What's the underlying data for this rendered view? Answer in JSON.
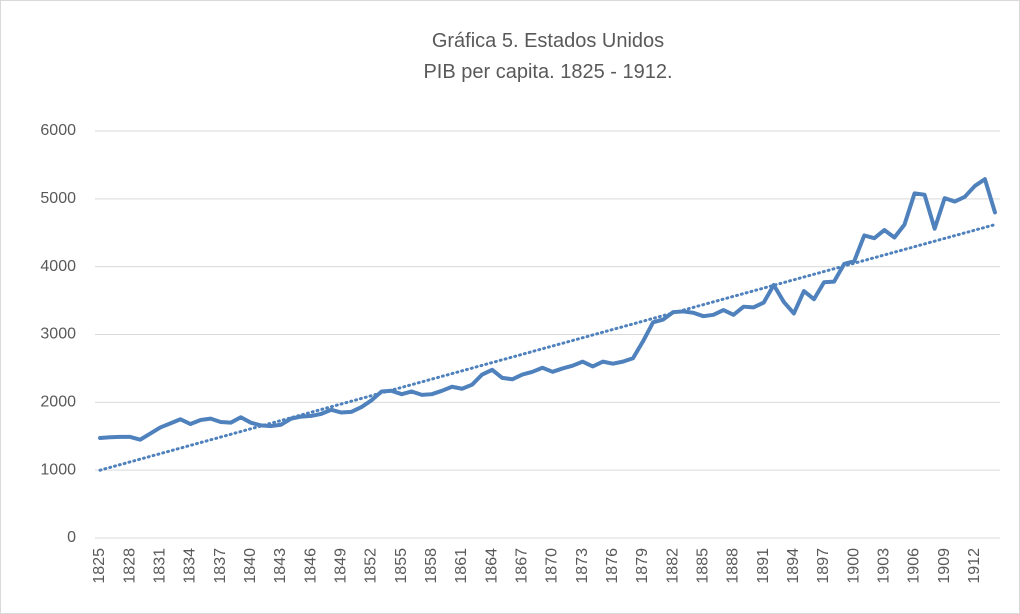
{
  "chart_data": {
    "type": "line",
    "title": "Gráfica 5. Estados Unidos",
    "subtitle": "PIB per capita. 1825 - 1912.",
    "categories": [
      "1825",
      null,
      null,
      "1828",
      null,
      null,
      "1831",
      null,
      null,
      "1834",
      null,
      null,
      "1837",
      null,
      null,
      "1840",
      null,
      null,
      "1843",
      null,
      null,
      "1846",
      null,
      null,
      "1849",
      null,
      null,
      "1852",
      null,
      null,
      "1855",
      null,
      null,
      "1858",
      null,
      null,
      "1861",
      null,
      null,
      "1864",
      null,
      null,
      "1867",
      null,
      null,
      "1870",
      null,
      null,
      "1873",
      null,
      null,
      "1876",
      null,
      null,
      "1879",
      null,
      null,
      "1882",
      null,
      null,
      "1885",
      null,
      null,
      "1888",
      null,
      null,
      "1891",
      null,
      null,
      "1894",
      null,
      null,
      "1897",
      null,
      null,
      "1900",
      null,
      null,
      "1903",
      null,
      null,
      "1906",
      null,
      null,
      "1909",
      null,
      null,
      "1912",
      null,
      null
    ],
    "series": [
      {
        "color": "#4f81bd",
        "values": [
          1475,
          1485,
          1490,
          1490,
          1450,
          1540,
          1630,
          1690,
          1750,
          1680,
          1740,
          1760,
          1710,
          1700,
          1780,
          1700,
          1660,
          1650,
          1670,
          1760,
          1790,
          1800,
          1830,
          1890,
          1850,
          1860,
          1930,
          2030,
          2160,
          2170,
          2120,
          2160,
          2110,
          2120,
          2170,
          2230,
          2200,
          2260,
          2410,
          2480,
          2360,
          2340,
          2410,
          2450,
          2510,
          2450,
          2500,
          2540,
          2600,
          2530,
          2600,
          2570,
          2600,
          2650,
          2900,
          3180,
          3220,
          3330,
          3340,
          3320,
          3270,
          3290,
          3360,
          3290,
          3410,
          3400,
          3470,
          3730,
          3480,
          3310,
          3640,
          3520,
          3770,
          3780,
          4040,
          4080,
          4460,
          4420,
          4540,
          4430,
          4620,
          5080,
          5060,
          4560,
          5010,
          4960,
          5030,
          5190,
          5290,
          4800
        ]
      }
    ],
    "trendline": {
      "color": "#4f81bd",
      "start": 1000,
      "end": 4620
    },
    "ylim": [
      0,
      6000
    ],
    "yticks": [
      0,
      1000,
      2000,
      3000,
      4000,
      5000,
      6000
    ],
    "grid": true
  }
}
